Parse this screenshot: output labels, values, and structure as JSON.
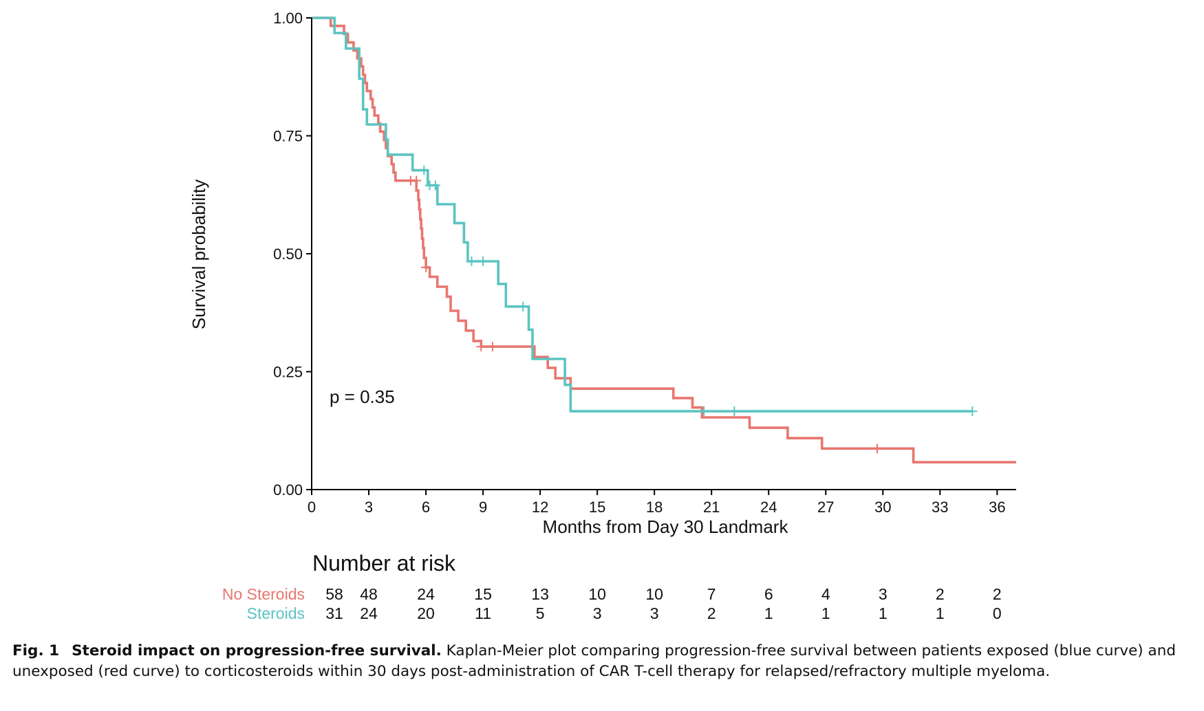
{
  "chart_data": {
    "type": "line",
    "subtype": "kaplan-meier-step",
    "xlabel": "Months from Day 30 Landmark",
    "ylabel": "Survival probability",
    "xlim": [
      0,
      37
    ],
    "ylim": [
      0,
      1
    ],
    "x_ticks": [
      "0",
      "3",
      "6",
      "9",
      "12",
      "15",
      "18",
      "21",
      "24",
      "27",
      "30",
      "33",
      "36"
    ],
    "y_ticks": [
      "0.00",
      "0.25",
      "0.50",
      "0.75",
      "1.00"
    ],
    "grid": false,
    "annotation": "p = 0.35",
    "series": [
      {
        "name": "No Steroids",
        "color": "#E8766F",
        "steps": [
          [
            0,
            1.0
          ],
          [
            1.0,
            0.983
          ],
          [
            1.7,
            0.966
          ],
          [
            1.9,
            0.948
          ],
          [
            2.2,
            0.931
          ],
          [
            2.4,
            0.914
          ],
          [
            2.6,
            0.897
          ],
          [
            2.7,
            0.879
          ],
          [
            2.8,
            0.862
          ],
          [
            2.9,
            0.845
          ],
          [
            3.1,
            0.828
          ],
          [
            3.2,
            0.81
          ],
          [
            3.3,
            0.793
          ],
          [
            3.5,
            0.776
          ],
          [
            3.6,
            0.759
          ],
          [
            3.8,
            0.741
          ],
          [
            3.9,
            0.724
          ],
          [
            4.0,
            0.707
          ],
          [
            4.2,
            0.69
          ],
          [
            4.3,
            0.672
          ],
          [
            4.4,
            0.655
          ],
          [
            5.5,
            0.634
          ],
          [
            5.6,
            0.614
          ],
          [
            5.65,
            0.594
          ],
          [
            5.7,
            0.573
          ],
          [
            5.75,
            0.553
          ],
          [
            5.8,
            0.532
          ],
          [
            5.85,
            0.512
          ],
          [
            5.9,
            0.491
          ],
          [
            6.0,
            0.471
          ],
          [
            6.2,
            0.451
          ],
          [
            6.6,
            0.43
          ],
          [
            7.1,
            0.409
          ],
          [
            7.3,
            0.379
          ],
          [
            7.7,
            0.358
          ],
          [
            8.1,
            0.337
          ],
          [
            8.5,
            0.315
          ],
          [
            8.9,
            0.303
          ],
          [
            11.7,
            0.281
          ],
          [
            12.4,
            0.258
          ],
          [
            12.8,
            0.236
          ],
          [
            13.6,
            0.214
          ],
          [
            19.0,
            0.194
          ],
          [
            20.0,
            0.174
          ],
          [
            20.5,
            0.153
          ],
          [
            23.0,
            0.131
          ],
          [
            25.0,
            0.109
          ],
          [
            26.8,
            0.087
          ],
          [
            31.6,
            0.058
          ],
          [
            37.0,
            0.058
          ]
        ],
        "censored": [
          [
            5.2,
            0.655
          ],
          [
            5.5,
            0.655
          ],
          [
            6.0,
            0.471
          ],
          [
            8.9,
            0.303
          ],
          [
            9.5,
            0.303
          ],
          [
            29.7,
            0.087
          ]
        ]
      },
      {
        "name": "Steroids",
        "color": "#5BC4C0",
        "steps": [
          [
            0,
            1.0
          ],
          [
            1.2,
            0.968
          ],
          [
            1.8,
            0.935
          ],
          [
            2.5,
            0.871
          ],
          [
            2.7,
            0.806
          ],
          [
            2.9,
            0.774
          ],
          [
            3.9,
            0.742
          ],
          [
            4.0,
            0.71
          ],
          [
            5.3,
            0.677
          ],
          [
            6.1,
            0.645
          ],
          [
            6.6,
            0.605
          ],
          [
            7.5,
            0.565
          ],
          [
            8.0,
            0.524
          ],
          [
            8.2,
            0.484
          ],
          [
            9.8,
            0.436
          ],
          [
            10.2,
            0.388
          ],
          [
            11.4,
            0.339
          ],
          [
            11.6,
            0.277
          ],
          [
            13.3,
            0.222
          ],
          [
            13.6,
            0.166
          ],
          [
            34.7,
            0.166
          ]
        ],
        "censored": [
          [
            5.9,
            0.677
          ],
          [
            6.2,
            0.645
          ],
          [
            6.5,
            0.645
          ],
          [
            8.4,
            0.484
          ],
          [
            9.0,
            0.484
          ],
          [
            11.1,
            0.388
          ],
          [
            20.6,
            0.166
          ],
          [
            22.2,
            0.166
          ],
          [
            34.7,
            0.166
          ]
        ]
      }
    ],
    "risk_table": {
      "title": "Number at risk",
      "times": [
        "0",
        "3",
        "6",
        "9",
        "12",
        "15",
        "18",
        "21",
        "24",
        "27",
        "30",
        "33",
        "36"
      ],
      "rows": [
        {
          "label": "No Steroids",
          "color": "#E8766F",
          "values": [
            "58",
            "48",
            "24",
            "15",
            "13",
            "10",
            "10",
            "7",
            "6",
            "4",
            "3",
            "2",
            "2"
          ]
        },
        {
          "label": "Steroids",
          "color": "#5BC4C0",
          "values": [
            "31",
            "24",
            "20",
            "11",
            "5",
            "3",
            "3",
            "2",
            "1",
            "1",
            "1",
            "1",
            "0"
          ]
        }
      ]
    }
  },
  "caption": {
    "label": "Fig. 1",
    "title": "Steroid impact on progression-free survival.",
    "text": "Kaplan-Meier plot comparing progression-free survival between patients exposed (blue curve) and unexposed (red curve) to corticosteroids within 30 days post-administration of CAR T-cell therapy for relapsed/refractory multiple myeloma."
  }
}
